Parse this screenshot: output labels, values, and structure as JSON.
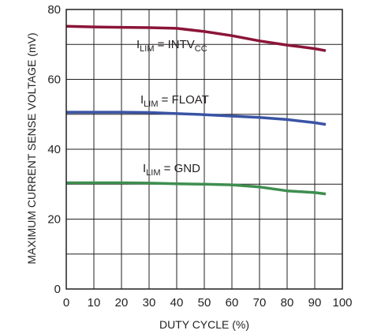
{
  "chart_data": {
    "type": "line",
    "xlabel": "DUTY CYCLE (%)",
    "ylabel": "MAXIMUM CURRENT SENSE VOLTAGE (mV)",
    "xlim": [
      0,
      100
    ],
    "ylim": [
      0,
      80
    ],
    "x_ticks": [
      "0",
      "10",
      "20",
      "30",
      "40",
      "50",
      "60",
      "70",
      "80",
      "90",
      "100"
    ],
    "y_ticks": [
      "0",
      "20",
      "40",
      "60",
      "80"
    ],
    "grid": true,
    "series": [
      {
        "name": "ILIM = INTVCC",
        "label_main": "I",
        "label_sub": "LIM",
        "label_mid": " = INTV",
        "label_sub2": "CC",
        "color": "#8b1538",
        "x": [
          0,
          10,
          20,
          30,
          40,
          50,
          60,
          70,
          80,
          90,
          94
        ],
        "y": [
          75.2,
          75.0,
          74.9,
          74.8,
          74.6,
          73.7,
          72.5,
          71.0,
          69.8,
          68.8,
          68.2
        ]
      },
      {
        "name": "ILIM = FLOAT",
        "label_main": "I",
        "label_sub": "LIM",
        "label_mid": " = FLOAT",
        "label_sub2": "",
        "color": "#3a54a4",
        "x": [
          0,
          10,
          20,
          30,
          40,
          50,
          60,
          70,
          80,
          90,
          94
        ],
        "y": [
          50.6,
          50.6,
          50.6,
          50.5,
          50.2,
          49.9,
          49.5,
          49.1,
          48.5,
          47.6,
          47.1
        ]
      },
      {
        "name": "ILIM = GND",
        "label_main": "I",
        "label_sub": "LIM",
        "label_mid": " = GND",
        "label_sub2": "",
        "color": "#3e8e4f",
        "x": [
          0,
          10,
          20,
          30,
          40,
          50,
          60,
          70,
          80,
          90,
          94
        ],
        "y": [
          30.4,
          30.4,
          30.4,
          30.3,
          30.1,
          30.0,
          29.8,
          29.2,
          28.1,
          27.6,
          27.2
        ]
      }
    ]
  }
}
